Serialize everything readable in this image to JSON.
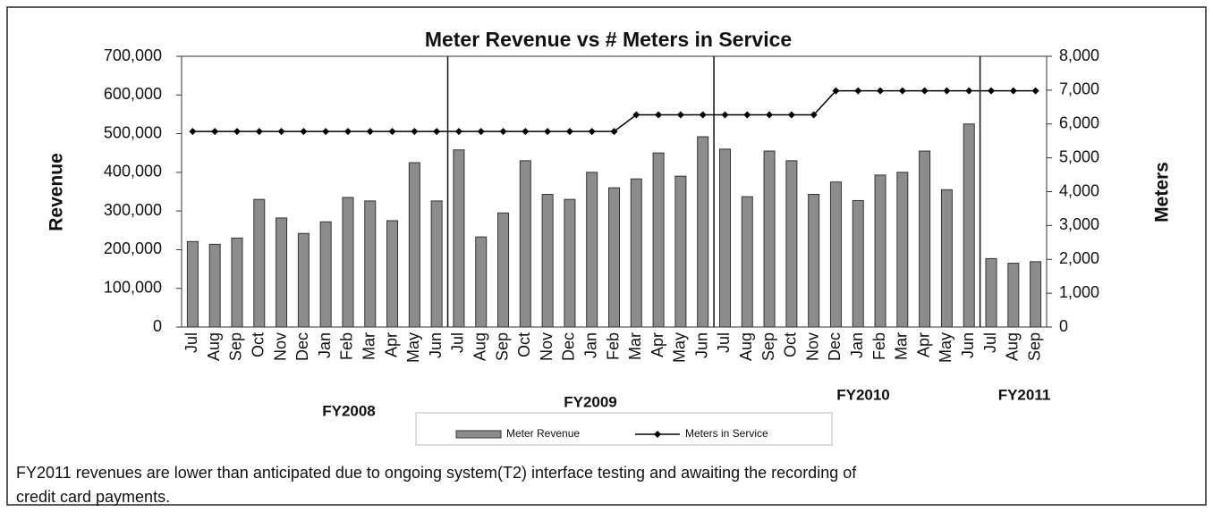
{
  "chart_data": {
    "type": "bar-line",
    "title": "Meter Revenue vs # Meters in Service",
    "y_label": "Revenue",
    "y2_label": "Meters",
    "categories": [
      "Jul",
      "Aug",
      "Sep",
      "Oct",
      "Nov",
      "Dec",
      "Jan",
      "Feb",
      "Mar",
      "Apr",
      "May",
      "Jun",
      "Jul",
      "Aug",
      "Sep",
      "Oct",
      "Nov",
      "Dec",
      "Jan",
      "Feb",
      "Mar",
      "Apr",
      "May",
      "Jun",
      "Jul",
      "Aug",
      "Sep",
      "Oct",
      "Nov",
      "Dec",
      "Jan",
      "Feb",
      "Mar",
      "Apr",
      "May",
      "Jun",
      "Jul",
      "Aug",
      "Sep"
    ],
    "groups": [
      "FY2008",
      "FY2009",
      "FY2010",
      "FY2011"
    ],
    "series": [
      {
        "name": "Meter Revenue",
        "type": "bar",
        "color": "#8c8c8c",
        "axis": "y",
        "values": [
          221000,
          214000,
          230000,
          330000,
          282000,
          242000,
          272000,
          335000,
          326000,
          275000,
          425000,
          326000,
          458000,
          233000,
          295000,
          430000,
          343000,
          330000,
          400000,
          360000,
          383000,
          450000,
          390000,
          492000,
          460000,
          337000,
          455000,
          430000,
          343000,
          375000,
          327000,
          393000,
          400000,
          455000,
          355000,
          525000,
          177000,
          165000,
          169000
        ]
      },
      {
        "name": "Meters in Service",
        "type": "line",
        "color": "#000000",
        "axis": "y2",
        "values": [
          5780,
          5780,
          5780,
          5780,
          5780,
          5780,
          5780,
          5780,
          5780,
          5780,
          5780,
          5780,
          5780,
          5780,
          5780,
          5780,
          5780,
          5780,
          5780,
          5780,
          6270,
          6270,
          6270,
          6270,
          6270,
          6270,
          6270,
          6270,
          6270,
          6980,
          6980,
          6980,
          6980,
          6980,
          6980,
          6980,
          6980,
          6980,
          6980
        ]
      }
    ],
    "ylim": [
      0,
      700000
    ],
    "yticks": [
      0,
      {
        "value": 100000,
        "label": "100,000"
      },
      {
        "value": 200000,
        "label": "200,000"
      },
      {
        "value": 300000,
        "label": "300,000"
      },
      {
        "value": 400000,
        "label": "400,000"
      },
      {
        "value": 500000,
        "label": "500,000"
      },
      {
        "value": 600000,
        "label": "600,000"
      },
      {
        "value": 700000,
        "label": "700,000"
      }
    ],
    "y2lim": [
      0,
      8000
    ],
    "y2ticks": [
      0,
      {
        "value": 1000,
        "label": "1,000"
      },
      {
        "value": 2000,
        "label": "2,000"
      },
      {
        "value": 3000,
        "label": "3,000"
      },
      {
        "value": 4000,
        "label": "4,000"
      },
      {
        "value": 5000,
        "label": "5,000"
      },
      {
        "value": 6000,
        "label": "6,000"
      },
      {
        "value": 7000,
        "label": "7,000"
      },
      {
        "value": 8000,
        "label": "8,000"
      }
    ],
    "legend": "bottom"
  },
  "caption": [
    "FY2011 revenues are lower than anticipated due to ongoing system(T2) interface testing and awaiting the recording of",
    "credit card payments."
  ]
}
